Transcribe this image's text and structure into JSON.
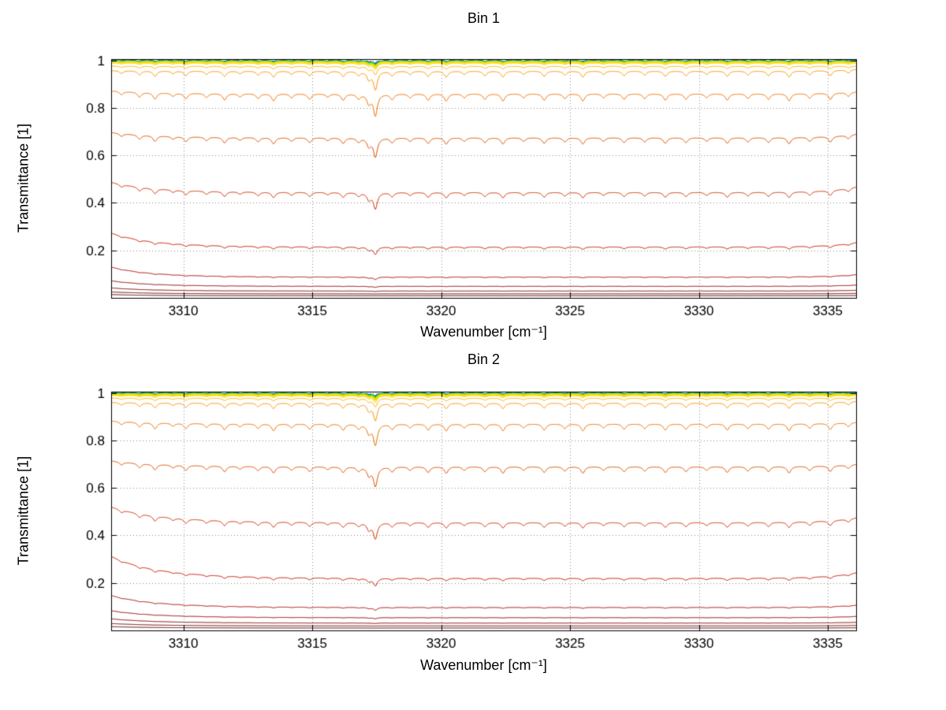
{
  "figure": {
    "background": "#ffffff"
  },
  "chart_data": [
    {
      "type": "line",
      "title": "Bin 1",
      "xlabel": "Wavenumber [cm⁻¹]",
      "ylabel": "Transmittance [1]",
      "xlim": [
        3307.2,
        3336.1
      ],
      "ylim": [
        0,
        1.005
      ],
      "xticks": [
        3310,
        3315,
        3320,
        3325,
        3330,
        3335
      ],
      "yticks": [
        0.2,
        0.4,
        0.6,
        0.8,
        1
      ],
      "grid": true,
      "grid_style": "dotted",
      "edge_decay": 1.8,
      "edge_decay_right": 1.0,
      "absorption_lines": {
        "width": 0.09,
        "positions": [
          3307.6,
          3308.3,
          3308.9,
          3309.6,
          3310.1,
          3310.9,
          3311.6,
          3312.2,
          3312.9,
          3313.5,
          3314.2,
          3314.9,
          3315.6,
          3316.2,
          3316.8,
          3317.2,
          3317.45,
          3318.1,
          3318.8,
          3319.5,
          3320.2,
          3320.9,
          3321.7,
          3322.4,
          3323.2,
          3324.0,
          3324.8,
          3325.5,
          3326.3,
          3327.1,
          3327.9,
          3328.7,
          3329.5,
          3330.3,
          3331.1,
          3331.9,
          3332.7,
          3333.5,
          3334.3,
          3335.1,
          3335.8
        ],
        "strengths": [
          0.4,
          0.6,
          0.8,
          0.4,
          0.7,
          0.5,
          0.8,
          0.4,
          0.6,
          0.9,
          0.5,
          0.7,
          0.4,
          0.8,
          0.6,
          1.2,
          2.8,
          0.7,
          0.5,
          0.8,
          0.9,
          0.5,
          0.7,
          0.9,
          0.5,
          0.8,
          0.6,
          0.9,
          0.5,
          0.7,
          0.6,
          0.8,
          0.7,
          0.5,
          0.8,
          0.6,
          0.7,
          0.9,
          0.6,
          0.8,
          0.5
        ]
      },
      "series": [
        {
          "color": "#000099",
          "level": 0.9995,
          "dip_scale": 0.004,
          "lw": 1.3,
          "dash": [
            7,
            5
          ]
        },
        {
          "color": "#0055ff",
          "level": 0.999,
          "dip_scale": 0.004,
          "lw": 1
        },
        {
          "color": "#00bbcc",
          "level": 0.9985,
          "dip_scale": 0.005,
          "lw": 1
        },
        {
          "color": "#00cc55",
          "level": 0.998,
          "dip_scale": 0.005,
          "lw": 1.2
        },
        {
          "color": "#66cc00",
          "level": 0.997,
          "dip_scale": 0.006,
          "lw": 1
        },
        {
          "color": "#cccc00",
          "level": 0.9955,
          "dip_scale": 0.007,
          "lw": 1.2
        },
        {
          "color": "#f2e200",
          "level": 0.9935,
          "dip_scale": 0.008,
          "lw": 2.2
        },
        {
          "color": "#ffcc00",
          "level": 0.9885,
          "dip_scale": 0.01,
          "lw": 1
        },
        {
          "color": "#ffb300",
          "level": 0.9755,
          "dip_scale": 0.013,
          "lw": 1
        },
        {
          "color": "#ff9000",
          "level": 0.9555,
          "level_left": 0.957,
          "level_right": 0.963,
          "dip_scale": 0.03,
          "lw": 1
        },
        {
          "color": "#ef6f00",
          "level": 0.86,
          "level_left": 0.872,
          "level_right": 0.868,
          "dip_scale": 0.04,
          "lw": 1
        },
        {
          "color": "#e04f00",
          "level": 0.675,
          "level_left": 0.697,
          "level_right": 0.69,
          "dip_scale": 0.045,
          "lw": 1
        },
        {
          "color": "#d02f00",
          "level": 0.445,
          "level_left": 0.487,
          "level_right": 0.468,
          "dip_scale": 0.06,
          "lw": 1
        },
        {
          "color": "#c01600",
          "level": 0.215,
          "level_left": 0.273,
          "level_right": 0.233,
          "dip_scale": 0.055,
          "lw": 1
        },
        {
          "color": "#aa0700",
          "level": 0.088,
          "level_left": 0.13,
          "level_right": 0.098,
          "dip_scale": 0.045,
          "lw": 1
        },
        {
          "color": "#950000",
          "level": 0.049,
          "level_left": 0.072,
          "level_right": 0.054,
          "dip_scale": 0.035,
          "lw": 1
        },
        {
          "color": "#7f0000",
          "level": 0.029,
          "level_left": 0.042,
          "level_right": 0.032,
          "dip_scale": 0.025,
          "lw": 1
        },
        {
          "color": "#690000",
          "level": 0.017,
          "level_left": 0.025,
          "level_right": 0.019,
          "dip_scale": 0.018,
          "lw": 1
        },
        {
          "color": "#540000",
          "level": 0.009,
          "level_left": 0.014,
          "level_right": 0.01,
          "dip_scale": 0.012,
          "lw": 1
        }
      ]
    },
    {
      "type": "line",
      "title": "Bin 2",
      "xlabel": "Wavenumber [cm⁻¹]",
      "ylabel": "Transmittance [1]",
      "xlim": [
        3307.2,
        3336.1
      ],
      "ylim": [
        0,
        1.005
      ],
      "xticks": [
        3310,
        3315,
        3320,
        3325,
        3330,
        3335
      ],
      "yticks": [
        0.2,
        0.4,
        0.6,
        0.8,
        1
      ],
      "grid": true,
      "grid_style": "dotted",
      "edge_decay": 2.1,
      "edge_decay_right": 1.1,
      "absorption_lines": {
        "width": 0.09,
        "positions": [
          3307.6,
          3308.3,
          3308.9,
          3309.6,
          3310.1,
          3310.9,
          3311.6,
          3312.2,
          3312.9,
          3313.5,
          3314.2,
          3314.9,
          3315.6,
          3316.2,
          3316.8,
          3317.2,
          3317.45,
          3318.1,
          3318.8,
          3319.5,
          3320.2,
          3320.9,
          3321.7,
          3322.4,
          3323.2,
          3324.0,
          3324.8,
          3325.5,
          3326.3,
          3327.1,
          3327.9,
          3328.7,
          3329.5,
          3330.3,
          3331.1,
          3331.9,
          3332.7,
          3333.5,
          3334.3,
          3335.1,
          3335.8
        ],
        "strengths": [
          0.4,
          0.6,
          0.8,
          0.4,
          0.7,
          0.5,
          0.8,
          0.4,
          0.6,
          0.9,
          0.5,
          0.7,
          0.4,
          0.8,
          0.6,
          1.2,
          2.8,
          0.7,
          0.5,
          0.8,
          0.9,
          0.5,
          0.7,
          0.9,
          0.5,
          0.8,
          0.6,
          0.9,
          0.5,
          0.7,
          0.6,
          0.8,
          0.7,
          0.5,
          0.8,
          0.6,
          0.7,
          0.9,
          0.6,
          0.8,
          0.5
        ]
      },
      "series": [
        {
          "color": "#000099",
          "level": 0.9995,
          "dip_scale": 0.004,
          "lw": 1.3,
          "dash": [
            7,
            5
          ]
        },
        {
          "color": "#0055ff",
          "level": 0.999,
          "dip_scale": 0.004,
          "lw": 1
        },
        {
          "color": "#00bbcc",
          "level": 0.9985,
          "dip_scale": 0.005,
          "lw": 1
        },
        {
          "color": "#00cc55",
          "level": 0.998,
          "dip_scale": 0.005,
          "lw": 1.6
        },
        {
          "color": "#66cc00",
          "level": 0.997,
          "dip_scale": 0.006,
          "lw": 1.2
        },
        {
          "color": "#cccc00",
          "level": 0.9955,
          "dip_scale": 0.007,
          "lw": 1.2
        },
        {
          "color": "#f2e200",
          "level": 0.9935,
          "dip_scale": 0.008,
          "lw": 2.2
        },
        {
          "color": "#ffcc00",
          "level": 0.989,
          "dip_scale": 0.01,
          "lw": 1
        },
        {
          "color": "#ffb300",
          "level": 0.978,
          "dip_scale": 0.013,
          "lw": 1
        },
        {
          "color": "#ff9000",
          "level": 0.958,
          "level_left": 0.96,
          "level_right": 0.965,
          "dip_scale": 0.028,
          "lw": 1
        },
        {
          "color": "#ef6f00",
          "level": 0.87,
          "level_left": 0.882,
          "level_right": 0.877,
          "dip_scale": 0.038,
          "lw": 1
        },
        {
          "color": "#e04f00",
          "level": 0.69,
          "level_left": 0.714,
          "level_right": 0.7,
          "dip_scale": 0.045,
          "lw": 1
        },
        {
          "color": "#d02f00",
          "level": 0.455,
          "level_left": 0.52,
          "level_right": 0.475,
          "dip_scale": 0.058,
          "lw": 1
        },
        {
          "color": "#c01600",
          "level": 0.22,
          "level_left": 0.312,
          "level_right": 0.243,
          "dip_scale": 0.055,
          "lw": 1
        },
        {
          "color": "#aa0700",
          "level": 0.097,
          "level_left": 0.147,
          "level_right": 0.106,
          "dip_scale": 0.045,
          "lw": 1
        },
        {
          "color": "#950000",
          "level": 0.054,
          "level_left": 0.083,
          "level_right": 0.059,
          "dip_scale": 0.035,
          "lw": 1
        },
        {
          "color": "#7f0000",
          "level": 0.031,
          "level_left": 0.049,
          "level_right": 0.034,
          "dip_scale": 0.025,
          "lw": 1
        },
        {
          "color": "#690000",
          "level": 0.019,
          "level_left": 0.029,
          "level_right": 0.021,
          "dip_scale": 0.018,
          "lw": 1
        },
        {
          "color": "#540000",
          "level": 0.01,
          "level_left": 0.016,
          "level_right": 0.011,
          "dip_scale": 0.012,
          "lw": 1
        }
      ]
    }
  ]
}
